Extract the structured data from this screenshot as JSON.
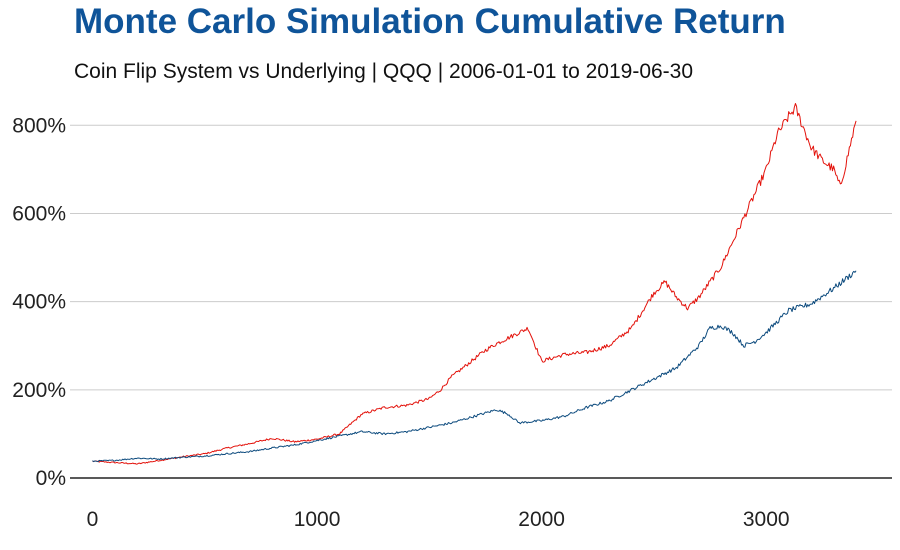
{
  "chart_data": {
    "type": "line",
    "title": "Monte Carlo Simulation Cumulative Return",
    "subtitle": "Coin Flip System vs Underlying | QQQ | 2006-01-01 to 2019-06-30",
    "xlabel": "",
    "ylabel": "",
    "xlim": [
      -100,
      3560
    ],
    "ylim": [
      0,
      880
    ],
    "x_ticks": [
      0,
      1000,
      2000,
      3000
    ],
    "x_tick_labels": [
      "0",
      "1000",
      "2000",
      "3000"
    ],
    "y_ticks": [
      0,
      200,
      400,
      600,
      800
    ],
    "y_tick_labels": [
      "0%",
      "200%",
      "400%",
      "600%",
      "800%"
    ],
    "grid": "horizontal",
    "legend": "none",
    "series": [
      {
        "color": "#e3120b",
        "x": [
          0,
          100,
          200,
          300,
          400,
          500,
          600,
          700,
          800,
          900,
          1000,
          1100,
          1200,
          1300,
          1400,
          1500,
          1550,
          1600,
          1700,
          1750,
          1800,
          1900,
          1940,
          2000,
          2100,
          2200,
          2300,
          2400,
          2450,
          2500,
          2550,
          2600,
          2650,
          2700,
          2800,
          2900,
          3000,
          3050,
          3100,
          3130,
          3200,
          3250,
          3300,
          3330,
          3400
        ],
        "values": [
          38,
          35,
          32,
          40,
          48,
          55,
          68,
          78,
          90,
          82,
          88,
          100,
          145,
          160,
          165,
          180,
          200,
          230,
          270,
          290,
          305,
          330,
          340,
          265,
          280,
          285,
          300,
          340,
          380,
          420,
          445,
          410,
          385,
          410,
          480,
          590,
          700,
          780,
          820,
          840,
          750,
          720,
          700,
          660,
          810
        ]
      },
      {
        "color": "#0d4b7e",
        "x": [
          0,
          100,
          200,
          300,
          400,
          500,
          600,
          700,
          800,
          900,
          1000,
          1100,
          1200,
          1300,
          1400,
          1500,
          1600,
          1700,
          1800,
          1850,
          1900,
          2000,
          2100,
          2200,
          2300,
          2400,
          2500,
          2600,
          2700,
          2750,
          2800,
          2850,
          2900,
          2950,
          3000,
          3100,
          3200,
          3300,
          3400
        ],
        "values": [
          38,
          40,
          45,
          43,
          47,
          50,
          55,
          60,
          68,
          75,
          85,
          95,
          105,
          100,
          105,
          115,
          125,
          140,
          155,
          145,
          125,
          130,
          140,
          160,
          175,
          200,
          225,
          250,
          300,
          340,
          345,
          330,
          300,
          310,
          330,
          380,
          395,
          430,
          470
        ]
      }
    ]
  }
}
